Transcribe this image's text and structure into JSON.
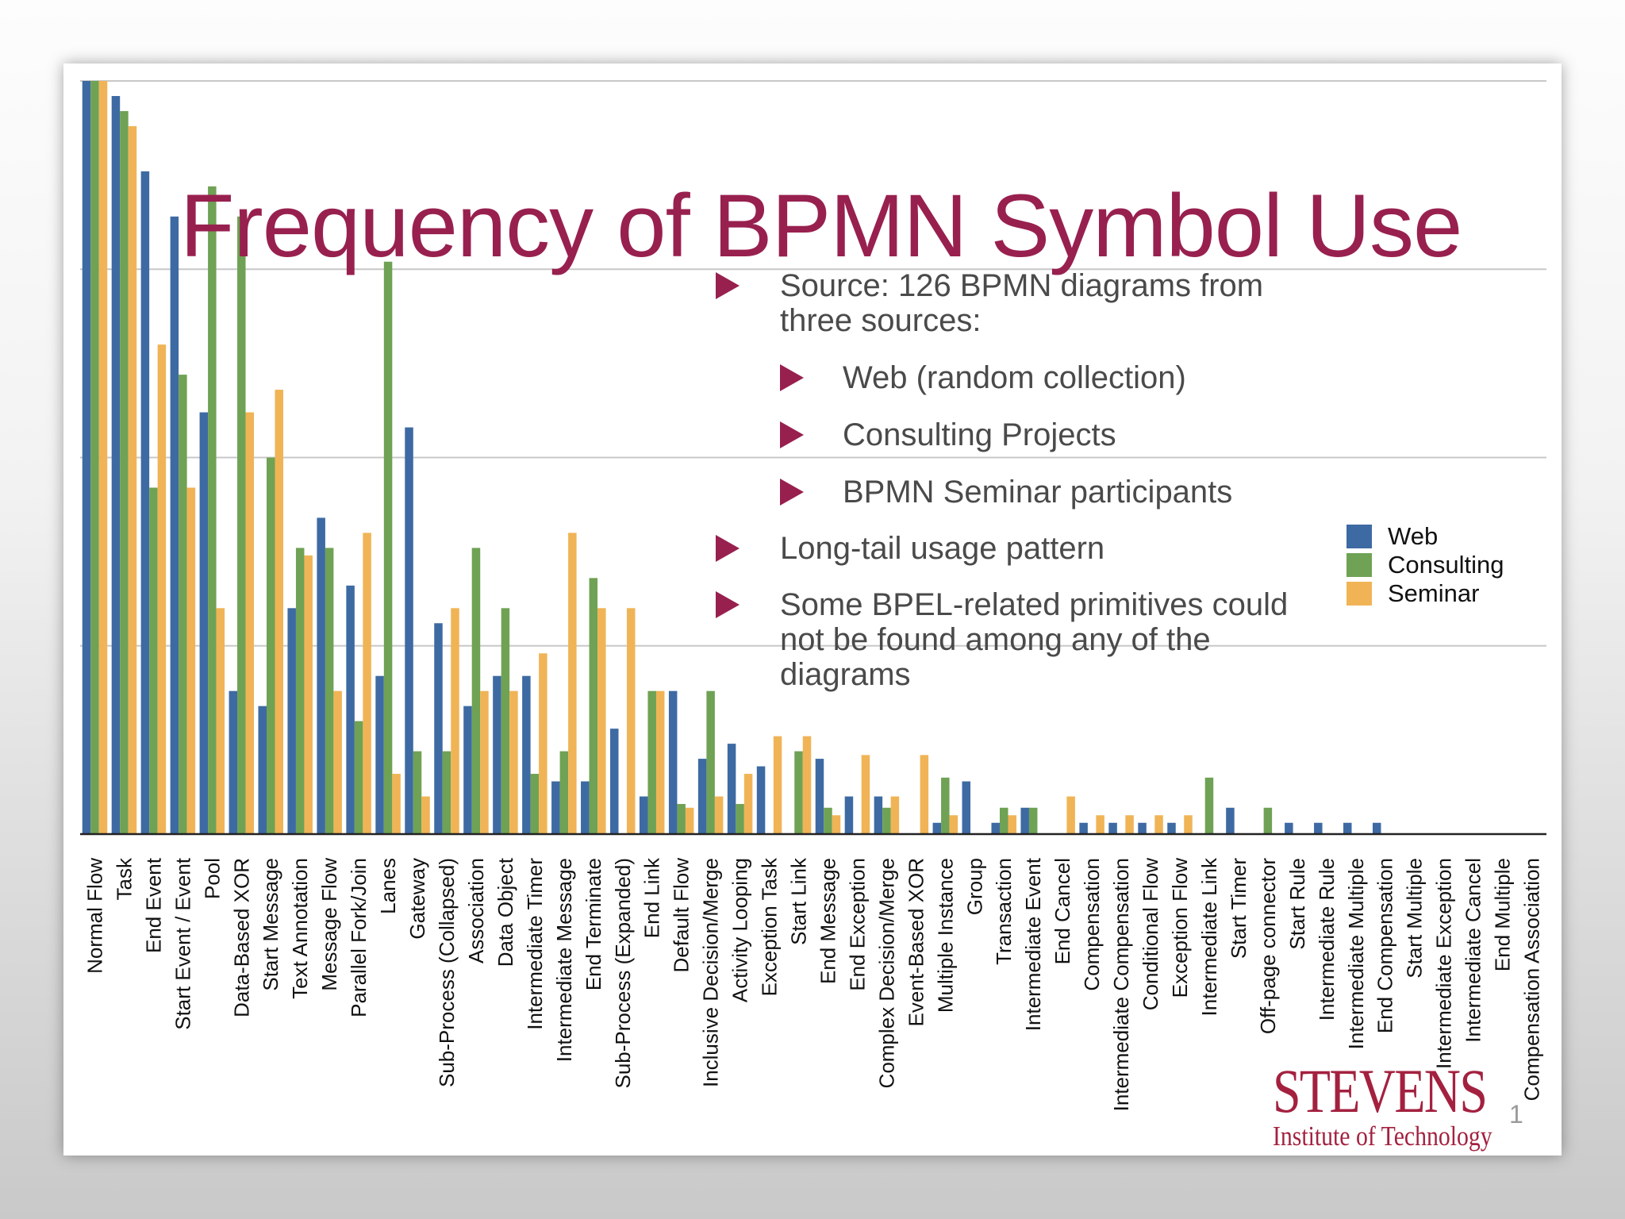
{
  "slide": {
    "title": "Frequency of BPMN Symbol Use",
    "page_number": "1",
    "colors": {
      "title": "#98204f",
      "bullet": "#98204f",
      "text": "#4a4a4a"
    },
    "bullets": [
      {
        "level": 1,
        "lines": [
          "Source: 126 BPMN diagrams from",
          "three sources:"
        ]
      },
      {
        "level": 2,
        "lines": [
          "Web (random collection)"
        ]
      },
      {
        "level": 2,
        "lines": [
          "Consulting Projects"
        ]
      },
      {
        "level": 2,
        "lines": [
          "BPMN Seminar participants"
        ]
      },
      {
        "level": 1,
        "lines": [
          "Long-tail usage pattern"
        ]
      },
      {
        "level": 1,
        "lines": [
          "Some BPEL-related primitives could",
          "not be found among any of the",
          "diagrams"
        ]
      }
    ],
    "logo": {
      "name": "STEVENS",
      "subtitle": "Institute of Technology"
    }
  },
  "chart_data": {
    "type": "bar",
    "title": "Frequency of BPMN Symbol Use",
    "xlabel": "",
    "ylabel": "",
    "ylim": [
      0,
      100
    ],
    "grid": true,
    "legend_position": "right",
    "categories": [
      "Normal Flow",
      "Task",
      "End Event",
      "Start Event / Event",
      "Pool",
      "Data-Based XOR",
      "Start Message",
      "Text Annotation",
      "Message Flow",
      "Parallel Fork/Join",
      "Lanes",
      "Gateway",
      "Sub-Process (Collapsed)",
      "Association",
      "Data Object",
      "Intermediate Timer",
      "Intermediate Message",
      "End Terminate",
      "Sub-Process (Expanded)",
      "End Link",
      "Default Flow",
      "Inclusive Decision/Merge",
      "Activity Looping",
      "Exception Task",
      "Start Link",
      "End Message",
      "End Exception",
      "Complex Decision/Merge",
      "Event-Based XOR",
      "Multiple Instance",
      "Group",
      "Transaction",
      "Intermediate Event",
      "End Cancel",
      "Compensation",
      "Intermediate Compensation",
      "Conditional Flow",
      "Exception Flow",
      "Intermediate Link",
      "Start Timer",
      "Off-page connector",
      "Start Rule",
      "Intermediate Rule",
      "Intermediate Multiple",
      "End Compensation",
      "Start Multiple",
      "Intermediate Exception",
      "Intermediate Cancel",
      "End Multiple",
      "Compensation Association"
    ],
    "series": [
      {
        "name": "Web",
        "color": "#3e6aa3",
        "values": [
          100,
          98,
          88,
          82,
          56,
          19,
          17,
          30,
          42,
          33,
          21,
          54,
          28,
          17,
          21,
          21,
          7,
          7,
          14,
          5,
          19,
          10,
          12,
          9,
          0,
          10,
          5,
          5,
          0,
          1.5,
          7,
          1.5,
          3.5,
          0,
          1.5,
          1.5,
          1.5,
          1.5,
          0,
          3.5,
          0,
          1.5,
          1.5,
          1.5,
          1.5,
          0,
          0,
          0,
          0,
          0
        ]
      },
      {
        "name": "Consulting",
        "color": "#6fa254",
        "values": [
          100,
          96,
          46,
          61,
          86,
          82,
          50,
          38,
          38,
          15,
          76,
          11,
          11,
          38,
          30,
          8,
          11,
          34,
          0,
          19,
          4,
          19,
          4,
          0,
          11,
          3.5,
          0,
          3.5,
          0,
          7.5,
          0,
          3.5,
          3.5,
          0,
          0,
          0,
          0,
          0,
          7.5,
          0,
          3.5,
          0,
          0,
          0,
          0,
          0,
          0,
          0,
          0,
          0
        ]
      },
      {
        "name": "Seminar",
        "color": "#f0b456",
        "values": [
          100,
          94,
          65,
          46,
          30,
          56,
          59,
          37,
          19,
          40,
          8,
          5,
          30,
          19,
          19,
          24,
          40,
          30,
          30,
          19,
          3.5,
          5,
          8,
          13,
          13,
          2.5,
          10.5,
          5,
          10.5,
          2.5,
          0,
          2.5,
          0,
          5,
          2.5,
          2.5,
          2.5,
          2.5,
          0,
          0,
          0,
          0,
          0,
          0,
          0,
          0,
          0,
          0,
          0,
          0
        ]
      }
    ]
  }
}
